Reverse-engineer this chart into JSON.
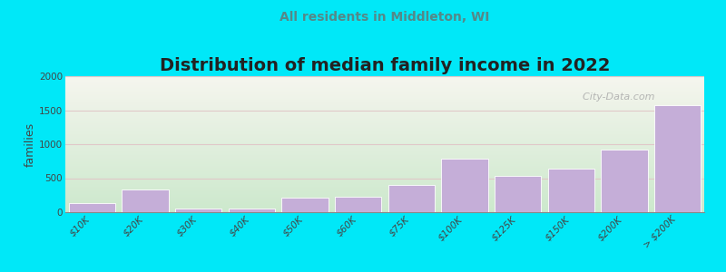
{
  "title": "Distribution of median family income in 2022",
  "subtitle": "All residents in Middleton, WI",
  "ylabel": "families",
  "categories": [
    "$10K",
    "$20K",
    "$30K",
    "$40K",
    "$50K",
    "$60K",
    "$75K",
    "$100K",
    "$125K",
    "$150K",
    "$200K",
    "> $200K"
  ],
  "values": [
    130,
    330,
    60,
    60,
    220,
    230,
    400,
    790,
    530,
    640,
    920,
    1570
  ],
  "bar_color": "#c5aed8",
  "bar_edge_color": "#ffffff",
  "ylim": [
    0,
    2000
  ],
  "yticks": [
    0,
    500,
    1000,
    1500,
    2000
  ],
  "bg_color": "#00e8f8",
  "plot_bg_top": "#f5f5ee",
  "plot_bg_bottom": "#cce8cc",
  "title_fontsize": 14,
  "subtitle_fontsize": 10,
  "subtitle_color": "#558888",
  "ylabel_fontsize": 9,
  "tick_fontsize": 7.5,
  "watermark": "  City-Data.com",
  "grid_color": "#e0c8c8",
  "title_color": "#222222"
}
